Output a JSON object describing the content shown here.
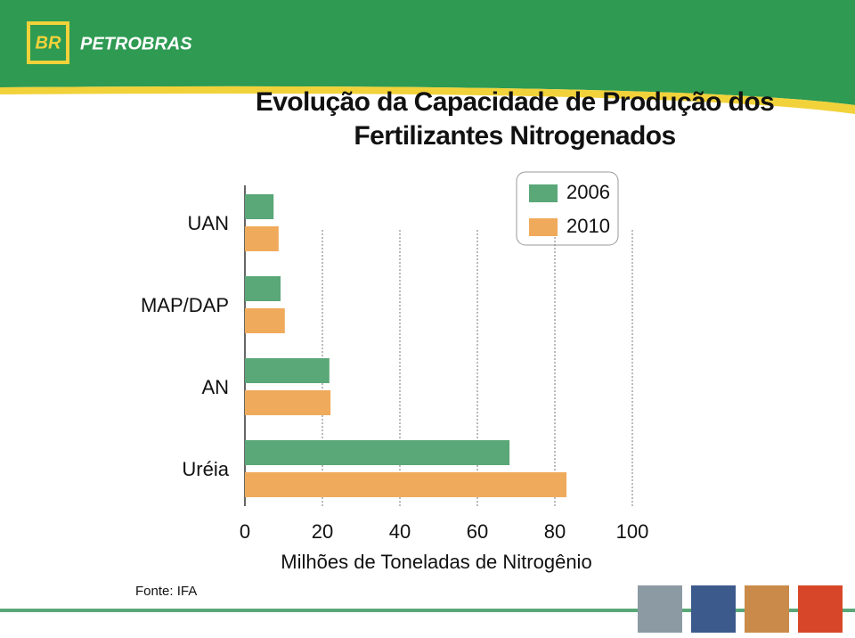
{
  "header": {
    "logo": "BR",
    "brand": "PETROBRAS"
  },
  "chart_data": {
    "type": "hbar",
    "title": "Evolução da Capacidade de Produção dos Fertilizantes Nitrogenados",
    "categories": [
      "UAN",
      "MAP/DAP",
      "AN",
      "Uréia"
    ],
    "series": [
      {
        "name": "2006",
        "color": "#5aa778",
        "values": [
          7.4,
          9.2,
          21.8,
          68.3
        ]
      },
      {
        "name": "2010",
        "color": "#f0aa5c",
        "values": [
          8.7,
          10.3,
          22.1,
          83.0
        ]
      }
    ],
    "xlim": [
      0,
      100
    ],
    "xticks": [
      0,
      20,
      40,
      60,
      80,
      100
    ],
    "xlabel": "Milhões de Toneladas de Nitrogênio",
    "grid": true
  },
  "footer": {
    "source": "Fonte: IFA"
  }
}
